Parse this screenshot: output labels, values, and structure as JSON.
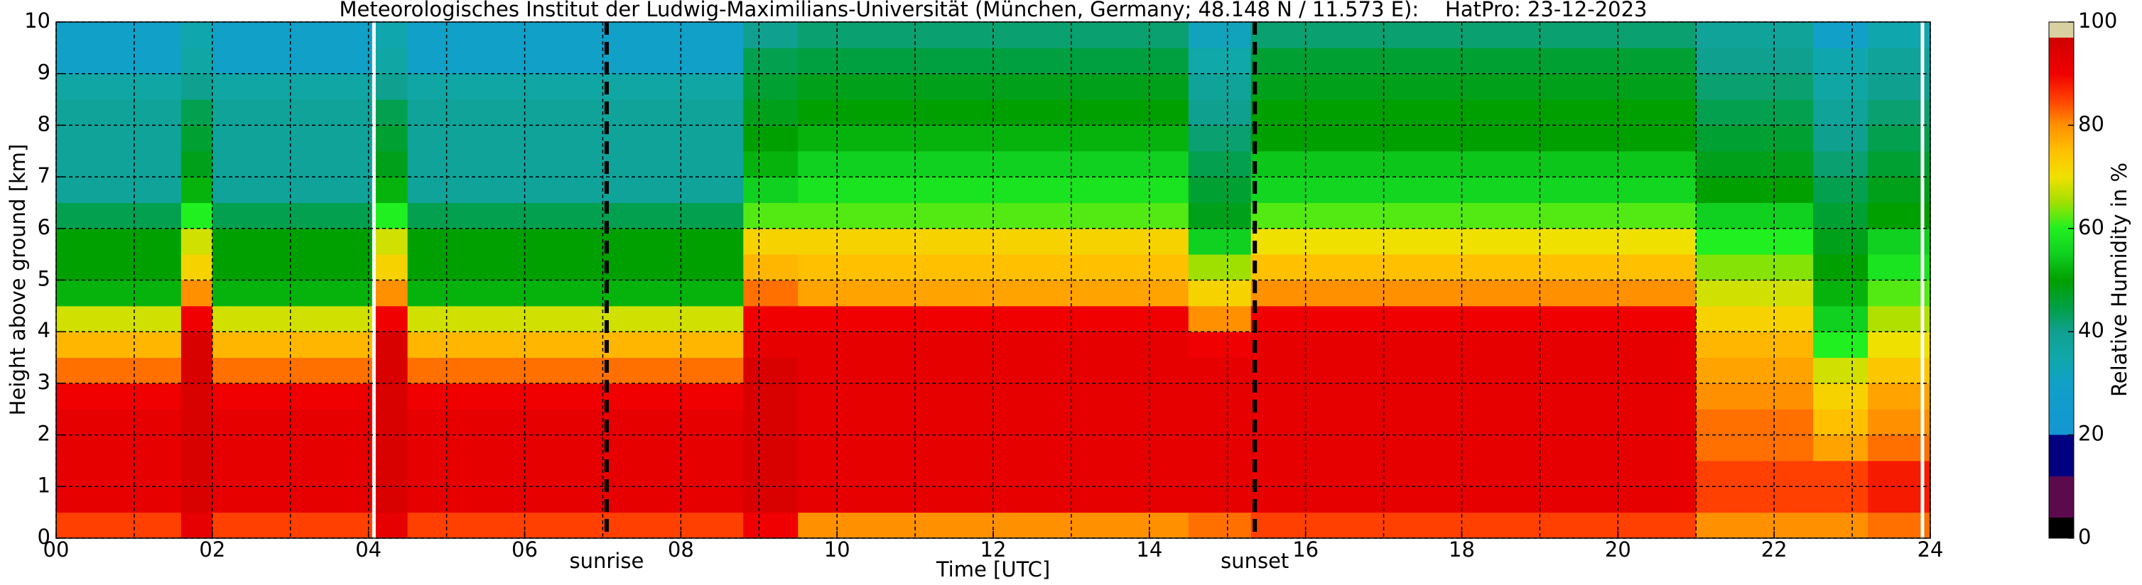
{
  "chart_data": {
    "type": "heatmap",
    "title": "Meteorologisches Institut der Ludwig-Maximilians-Universität (München, Germany; 48.148 N / 11.573 E):    HatPro: 23-12-2023",
    "xlabel": "Time [UTC]",
    "ylabel": "Height above ground [km]",
    "colorbar_label": "Relative Humidity in %",
    "xbins": [
      0,
      1.6,
      2.0,
      4.05,
      4.5,
      8.8,
      9.5,
      14.5,
      15.3,
      21,
      22.5,
      23.2,
      24
    ],
    "ybins": [
      0,
      0.5,
      1,
      1.5,
      2,
      2.5,
      3,
      3.5,
      4,
      4.5,
      5,
      5.5,
      6,
      6.5,
      7,
      7.5,
      8,
      8.5,
      9,
      9.5,
      10
    ],
    "z": [
      [
        85,
        92,
        92,
        92,
        92,
        90,
        82,
        76,
        68,
        52,
        50,
        50,
        44,
        38,
        38,
        38,
        38,
        36,
        30,
        30
      ],
      [
        92,
        95,
        95,
        95,
        95,
        95,
        95,
        95,
        90,
        80,
        72,
        68,
        60,
        52,
        48,
        46,
        44,
        40,
        36,
        34
      ],
      [
        85,
        92,
        92,
        92,
        92,
        90,
        82,
        76,
        68,
        52,
        50,
        50,
        44,
        38,
        38,
        38,
        38,
        36,
        30,
        30
      ],
      [
        92,
        95,
        95,
        95,
        95,
        95,
        95,
        95,
        90,
        80,
        72,
        68,
        60,
        52,
        48,
        46,
        44,
        40,
        36,
        34
      ],
      [
        85,
        92,
        92,
        92,
        92,
        90,
        82,
        76,
        68,
        52,
        50,
        50,
        44,
        38,
        38,
        38,
        38,
        36,
        30,
        30
      ],
      [
        90,
        95,
        95,
        95,
        95,
        95,
        95,
        92,
        90,
        82,
        76,
        72,
        62,
        55,
        52,
        50,
        48,
        46,
        44,
        40
      ],
      [
        80,
        92,
        92,
        92,
        92,
        92,
        92,
        92,
        90,
        78,
        75,
        72,
        62,
        58,
        55,
        52,
        50,
        48,
        45,
        42
      ],
      [
        82,
        92,
        92,
        92,
        92,
        92,
        92,
        90,
        80,
        72,
        65,
        55,
        48,
        46,
        44,
        42,
        40,
        38,
        35,
        32
      ],
      [
        85,
        92,
        92,
        92,
        92,
        92,
        92,
        92,
        90,
        80,
        75,
        70,
        62,
        56,
        54,
        50,
        50,
        48,
        46,
        42
      ],
      [
        80,
        85,
        85,
        82,
        82,
        80,
        78,
        76,
        72,
        68,
        64,
        60,
        55,
        50,
        48,
        46,
        44,
        42,
        40,
        38
      ],
      [
        80,
        85,
        85,
        78,
        75,
        72,
        68,
        60,
        55,
        52,
        50,
        48,
        46,
        44,
        42,
        40,
        38,
        36,
        34,
        30
      ],
      [
        82,
        88,
        88,
        82,
        80,
        78,
        74,
        70,
        66,
        62,
        58,
        55,
        50,
        48,
        46,
        44,
        42,
        40,
        38,
        34
      ]
    ],
    "xlim": [
      0,
      24
    ],
    "ylim": [
      0,
      10
    ],
    "clim": [
      0,
      100
    ],
    "xticks": [
      {
        "value": 0,
        "label": "00"
      },
      {
        "value": 2,
        "label": "02"
      },
      {
        "value": 4,
        "label": "04"
      },
      {
        "value": 6,
        "label": "06"
      },
      {
        "value": 8,
        "label": "08"
      },
      {
        "value": 10,
        "label": "10"
      },
      {
        "value": 12,
        "label": "12"
      },
      {
        "value": 14,
        "label": "14"
      },
      {
        "value": 16,
        "label": "16"
      },
      {
        "value": 18,
        "label": "18"
      },
      {
        "value": 20,
        "label": "20"
      },
      {
        "value": 22,
        "label": "22"
      },
      {
        "value": 24,
        "label": "24"
      }
    ],
    "xgrid_minor": [
      1,
      3,
      5,
      7,
      9,
      11,
      13,
      15,
      17,
      19,
      21,
      23
    ],
    "yticks": [
      0,
      1,
      2,
      3,
      4,
      5,
      6,
      7,
      8,
      9,
      10
    ],
    "cticks": [
      0,
      20,
      40,
      60,
      80,
      100
    ],
    "grid": true,
    "gaps": [
      4.07,
      23.9
    ],
    "events": [
      {
        "x": 7.05,
        "label": "sunrise"
      },
      {
        "x": 15.35,
        "label": "sunset"
      }
    ],
    "colormap": [
      [
        0,
        "#000000"
      ],
      [
        4,
        "#000000"
      ],
      [
        4,
        "#5c0a4e"
      ],
      [
        12,
        "#5c0a4e"
      ],
      [
        12,
        "#000080"
      ],
      [
        20,
        "#000080"
      ],
      [
        20,
        "#1496d2"
      ],
      [
        30,
        "#10a0c8"
      ],
      [
        35,
        "#10a8a8"
      ],
      [
        40,
        "#10a090"
      ],
      [
        45,
        "#00a040"
      ],
      [
        50,
        "#00a000"
      ],
      [
        55,
        "#10d020"
      ],
      [
        60,
        "#20f020"
      ],
      [
        65,
        "#a0e000"
      ],
      [
        70,
        "#f0e000"
      ],
      [
        75,
        "#ffc000"
      ],
      [
        80,
        "#ff9000"
      ],
      [
        85,
        "#ff4000"
      ],
      [
        90,
        "#f00000"
      ],
      [
        97,
        "#d00000"
      ],
      [
        97,
        "#d8d0a0"
      ],
      [
        100,
        "#d8d0a0"
      ]
    ]
  }
}
